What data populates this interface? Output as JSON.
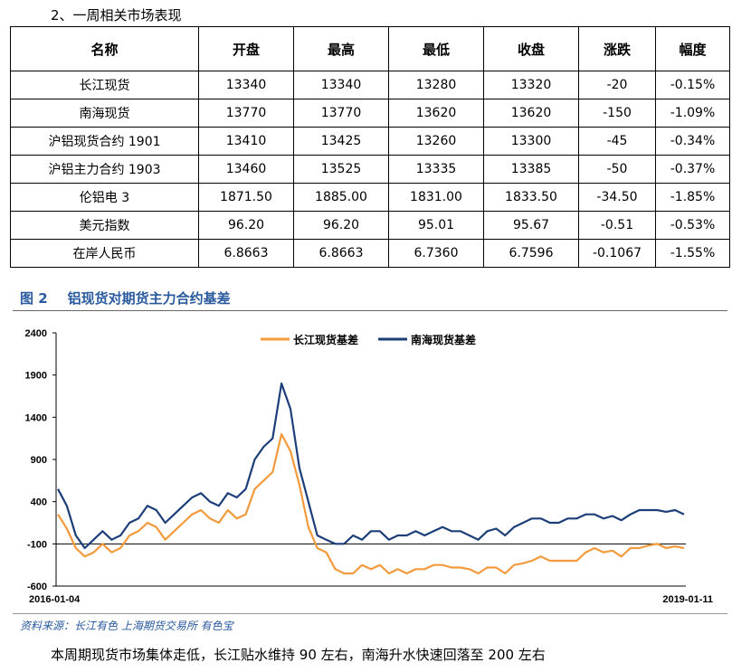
{
  "heading": "2、一周相关市场表现",
  "table": {
    "headers": [
      "名称",
      "开盘",
      "最高",
      "最低",
      "收盘",
      "涨跌",
      "幅度"
    ],
    "rows": [
      [
        "长江现货",
        "13340",
        "13340",
        "13280",
        "13320",
        "-20",
        "-0.15%"
      ],
      [
        "南海现货",
        "13770",
        "13770",
        "13620",
        "13620",
        "-150",
        "-1.09%"
      ],
      [
        "沪铝现货合约 1901",
        "13410",
        "13425",
        "13260",
        "13300",
        "-45",
        "-0.34%"
      ],
      [
        "沪铝主力合约 1903",
        "13460",
        "13525",
        "13335",
        "13385",
        "-50",
        "-0.37%"
      ],
      [
        "伦铝电 3",
        "1871.50",
        "1885.00",
        "1831.00",
        "1833.50",
        "-34.50",
        "-1.85%"
      ],
      [
        "美元指数",
        "96.20",
        "96.20",
        "95.01",
        "95.67",
        "-0.51",
        "-0.53%"
      ],
      [
        "在岸人民币",
        "6.8663",
        "6.8663",
        "6.7360",
        "6.7596",
        "-0.1067",
        "-1.55%"
      ]
    ]
  },
  "figure": {
    "number": "图 2",
    "title": "铝现货对期货主力合约基差"
  },
  "chart_data": {
    "type": "line",
    "title": "",
    "xlabel": "",
    "ylabel": "",
    "ylim": [
      -600,
      2400
    ],
    "yticks": [
      2400,
      1900,
      1400,
      900,
      400,
      -100,
      -600
    ],
    "x_start_label": "2016-01-04",
    "x_end_label": "2019-01-11",
    "grid": false,
    "legend_position": "top-center",
    "series": [
      {
        "name": "长江现货基差",
        "color": "#f39a3c",
        "values": [
          250,
          80,
          -150,
          -250,
          -200,
          -100,
          -200,
          -150,
          0,
          50,
          150,
          100,
          -50,
          50,
          150,
          250,
          300,
          200,
          150,
          300,
          200,
          250,
          550,
          650,
          750,
          1200,
          1000,
          600,
          100,
          -150,
          -200,
          -400,
          -450,
          -450,
          -350,
          -400,
          -350,
          -450,
          -400,
          -450,
          -400,
          -400,
          -350,
          -350,
          -380,
          -380,
          -400,
          -450,
          -380,
          -380,
          -450,
          -350,
          -330,
          -300,
          -250,
          -300,
          -300,
          -300,
          -300,
          -200,
          -150,
          -200,
          -180,
          -250,
          -150,
          -150,
          -120,
          -100,
          -150,
          -130,
          -150
        ]
      },
      {
        "name": "南海现货基差",
        "color": "#1d3f79",
        "values": [
          550,
          350,
          0,
          -150,
          -50,
          50,
          -50,
          0,
          150,
          200,
          350,
          300,
          150,
          250,
          350,
          450,
          500,
          400,
          350,
          500,
          450,
          550,
          900,
          1050,
          1150,
          1800,
          1500,
          800,
          400,
          0,
          -50,
          -100,
          -100,
          0,
          -50,
          50,
          50,
          -50,
          0,
          0,
          50,
          0,
          50,
          100,
          50,
          50,
          0,
          -50,
          50,
          80,
          0,
          100,
          150,
          200,
          200,
          150,
          150,
          200,
          200,
          250,
          250,
          200,
          230,
          180,
          250,
          300,
          300,
          300,
          280,
          300,
          250
        ]
      }
    ]
  },
  "source": "资料来源：长江有色   上海期货交易所   有色宝",
  "summary": "本周期现货市场集体走低，长江贴水维持 90 左右，南海升水快速回落至 200 左右"
}
